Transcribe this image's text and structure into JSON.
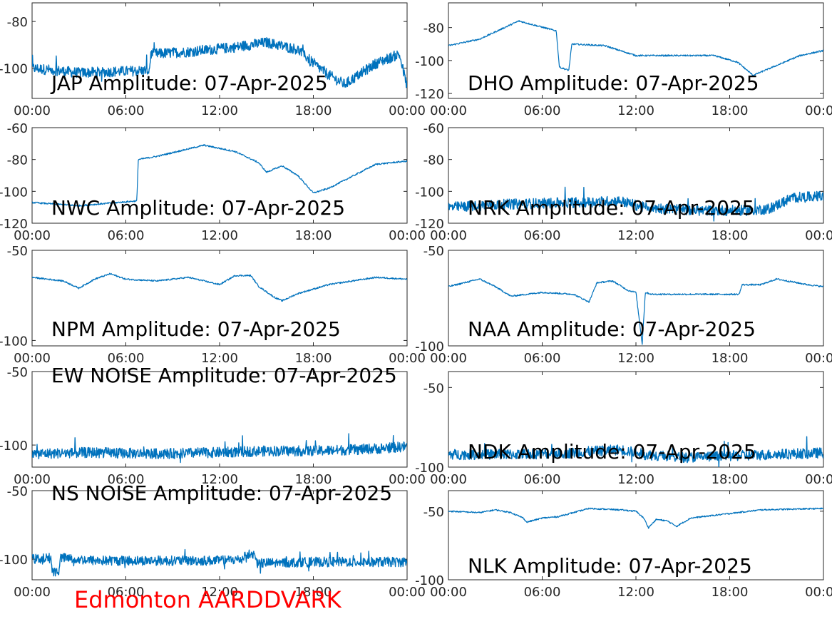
{
  "caption": "Edmonton AARDDVARK",
  "caption_color": "#ff0000",
  "series_color": "#0072bd",
  "chart_data": [
    {
      "type": "line",
      "title": "JAP Amplitude: 07-Apr-2025",
      "x_unit": "hours",
      "xlim": [
        0,
        24
      ],
      "x_ticks": [
        0,
        6,
        12,
        18,
        24
      ],
      "x_tick_labels": [
        "00:00",
        "06:00",
        "12:00",
        "18:00",
        "00:00"
      ],
      "ylim": [
        -113,
        -72
      ],
      "y_ticks": [
        -80,
        -100
      ],
      "y_tick_labels": [
        "-80",
        "-100"
      ],
      "series": [
        {
          "values": [
            [
              0,
              -100
            ],
            [
              3,
              -102
            ],
            [
              7.5,
              -101
            ],
            [
              7.6,
              -94
            ],
            [
              10,
              -93
            ],
            [
              13,
              -91
            ],
            [
              15,
              -89
            ],
            [
              17,
              -92
            ],
            [
              18.2,
              -99
            ],
            [
              19,
              -103
            ],
            [
              20,
              -107
            ],
            [
              22,
              -98
            ],
            [
              23.5,
              -94
            ],
            [
              24,
              -108
            ]
          ]
        }
      ]
    },
    {
      "type": "line",
      "title": "DHO Amplitude: 07-Apr-2025",
      "x_unit": "hours",
      "xlim": [
        0,
        24
      ],
      "x_ticks": [
        0,
        6,
        12,
        18,
        24
      ],
      "x_tick_labels": [
        "00:00",
        "06:00",
        "12:00",
        "18:00",
        "00:00"
      ],
      "ylim": [
        -123,
        -65
      ],
      "y_ticks": [
        -80,
        -100,
        -120
      ],
      "y_tick_labels": [
        "-80",
        "-100",
        "-120"
      ],
      "series": [
        {
          "values": [
            [
              0,
              -91
            ],
            [
              2,
              -87
            ],
            [
              4.5,
              -76
            ],
            [
              6.5,
              -81
            ],
            [
              6.9,
              -82
            ],
            [
              7.1,
              -104
            ],
            [
              7.7,
              -106
            ],
            [
              7.9,
              -90
            ],
            [
              10,
              -91
            ],
            [
              12,
              -97
            ],
            [
              15,
              -97
            ],
            [
              17,
              -97
            ],
            [
              18.5,
              -101
            ],
            [
              19.5,
              -109
            ],
            [
              21,
              -103
            ],
            [
              22.5,
              -97
            ],
            [
              24,
              -94
            ]
          ]
        }
      ]
    },
    {
      "type": "line",
      "title": "NWC Amplitude: 07-Apr-2025",
      "x_unit": "hours",
      "xlim": [
        0,
        24
      ],
      "x_ticks": [
        0,
        6,
        12,
        18,
        24
      ],
      "x_tick_labels": [
        "00:00",
        "06:00",
        "12:00",
        "18:00",
        "00:00"
      ],
      "ylim": [
        -120,
        -60
      ],
      "y_ticks": [
        -60,
        -80,
        -100,
        -120
      ],
      "y_tick_labels": [
        "-60",
        "-80",
        "-100",
        "-120"
      ],
      "series": [
        {
          "values": [
            [
              0,
              -107
            ],
            [
              3,
              -109
            ],
            [
              6.7,
              -106
            ],
            [
              6.8,
              -80
            ],
            [
              8,
              -78
            ],
            [
              11,
              -71
            ],
            [
              13,
              -75
            ],
            [
              14.5,
              -82
            ],
            [
              15,
              -88
            ],
            [
              16,
              -84
            ],
            [
              17,
              -90
            ],
            [
              18,
              -101
            ],
            [
              19,
              -98
            ],
            [
              21,
              -88
            ],
            [
              22,
              -83
            ],
            [
              24,
              -81
            ]
          ]
        }
      ]
    },
    {
      "type": "line",
      "title": "NRK Amplitude: 07-Apr-2025",
      "x_unit": "hours",
      "xlim": [
        0,
        24
      ],
      "x_ticks": [
        0,
        6,
        12,
        18,
        24
      ],
      "x_tick_labels": [
        "00:00",
        "06:00",
        "12:00",
        "18:00",
        "00:00"
      ],
      "ylim": [
        -120,
        -60
      ],
      "y_ticks": [
        -60,
        -80,
        -100,
        -120
      ],
      "y_tick_labels": [
        "-60",
        "-80",
        "-100",
        "-120"
      ],
      "series": [
        {
          "values": [
            [
              0,
              -110
            ],
            [
              4,
              -108
            ],
            [
              8,
              -107
            ],
            [
              11,
              -106
            ],
            [
              12.5,
              -110
            ],
            [
              16,
              -112
            ],
            [
              19,
              -112
            ],
            [
              20.5,
              -111
            ],
            [
              22,
              -104
            ],
            [
              24,
              -103
            ]
          ]
        }
      ]
    },
    {
      "type": "line",
      "title": "NPM Amplitude: 07-Apr-2025",
      "x_unit": "hours",
      "xlim": [
        0,
        24
      ],
      "x_ticks": [
        0,
        6,
        12,
        18,
        24
      ],
      "x_tick_labels": [
        "00:00",
        "06:00",
        "12:00",
        "18:00",
        "00:00"
      ],
      "ylim": [
        -103,
        -50
      ],
      "y_ticks": [
        -50,
        -100
      ],
      "y_tick_labels": [
        "-50",
        "-100"
      ],
      "series": [
        {
          "values": [
            [
              0,
              -65
            ],
            [
              2,
              -67
            ],
            [
              3,
              -71
            ],
            [
              4,
              -66
            ],
            [
              5,
              -63
            ],
            [
              6,
              -66
            ],
            [
              8,
              -67
            ],
            [
              10,
              -65
            ],
            [
              11,
              -67
            ],
            [
              12,
              -69
            ],
            [
              13,
              -64
            ],
            [
              14,
              -64
            ],
            [
              14.5,
              -70
            ],
            [
              15.5,
              -76
            ],
            [
              16,
              -78
            ],
            [
              17,
              -74
            ],
            [
              19,
              -69
            ],
            [
              22,
              -65
            ],
            [
              24,
              -66
            ]
          ]
        }
      ]
    },
    {
      "type": "line",
      "title": "NAA Amplitude: 07-Apr-2025",
      "x_unit": "hours",
      "xlim": [
        0,
        24
      ],
      "x_ticks": [
        0,
        6,
        12,
        18,
        24
      ],
      "x_tick_labels": [
        "00:00",
        "06:00",
        "12:00",
        "18:00",
        "00:00"
      ],
      "ylim": [
        -100,
        -50
      ],
      "y_ticks": [
        -50,
        -100
      ],
      "y_tick_labels": [
        "-50",
        "-100"
      ],
      "series": [
        {
          "values": [
            [
              0,
              -69
            ],
            [
              2,
              -65
            ],
            [
              3,
              -69
            ],
            [
              4,
              -74
            ],
            [
              6,
              -72
            ],
            [
              8,
              -73
            ],
            [
              9,
              -77
            ],
            [
              9.5,
              -67
            ],
            [
              10.5,
              -66
            ],
            [
              11.5,
              -71
            ],
            [
              12,
              -72
            ],
            [
              12.4,
              -99
            ],
            [
              12.6,
              -72
            ],
            [
              13,
              -73
            ],
            [
              18.6,
              -73
            ],
            [
              18.8,
              -68
            ],
            [
              20,
              -68
            ],
            [
              21,
              -65
            ],
            [
              23,
              -68
            ],
            [
              24,
              -69
            ]
          ]
        }
      ]
    },
    {
      "type": "line",
      "title": "EW NOISE Amplitude: 07-Apr-2025",
      "x_unit": "hours",
      "xlim": [
        0,
        24
      ],
      "x_ticks": [
        0,
        6,
        12,
        18,
        24
      ],
      "x_tick_labels": [
        "00:00",
        "06:00",
        "12:00",
        "18:00",
        "00:00"
      ],
      "ylim": [
        -115,
        -50
      ],
      "y_ticks": [
        -50,
        -100
      ],
      "y_tick_labels": [
        "-50",
        "-100"
      ],
      "series": [
        {
          "values": [
            [
              0,
              -106
            ],
            [
              4,
              -105
            ],
            [
              8,
              -106
            ],
            [
              12,
              -105
            ],
            [
              15,
              -104
            ],
            [
              18,
              -104
            ],
            [
              21,
              -103
            ],
            [
              24,
              -101
            ]
          ]
        }
      ]
    },
    {
      "type": "line",
      "title": "NDK Amplitude: 07-Apr-2025",
      "x_unit": "hours",
      "xlim": [
        0,
        24
      ],
      "x_ticks": [
        0,
        6,
        12,
        18,
        24
      ],
      "x_tick_labels": [
        "00:00",
        "06:00",
        "12:00",
        "18:00",
        "00:00"
      ],
      "ylim": [
        -100,
        -40
      ],
      "y_ticks": [
        -50,
        -100
      ],
      "y_tick_labels": [
        "-50",
        "-100"
      ],
      "series": [
        {
          "values": [
            [
              0,
              -92
            ],
            [
              4,
              -92
            ],
            [
              8,
              -91
            ],
            [
              11,
              -89
            ],
            [
              12.5,
              -92
            ],
            [
              15,
              -94
            ],
            [
              18,
              -93
            ],
            [
              21,
              -92
            ],
            [
              24,
              -91
            ]
          ]
        }
      ]
    },
    {
      "type": "line",
      "title": "NS NOISE Amplitude: 07-Apr-2025",
      "x_unit": "hours",
      "xlim": [
        0,
        24
      ],
      "x_ticks": [
        0,
        6,
        12,
        18,
        24
      ],
      "x_tick_labels": [
        "00:00",
        "06:00",
        "12:00",
        "18:00",
        "00:00"
      ],
      "ylim": [
        -115,
        -50
      ],
      "y_ticks": [
        -50,
        -100
      ],
      "y_tick_labels": [
        "-50",
        "-100"
      ],
      "series": [
        {
          "values": [
            [
              0,
              -100
            ],
            [
              1.2,
              -99
            ],
            [
              1.3,
              -109
            ],
            [
              1.7,
              -109
            ],
            [
              1.8,
              -99
            ],
            [
              4,
              -101
            ],
            [
              8,
              -101
            ],
            [
              12,
              -101
            ],
            [
              13.5,
              -100
            ],
            [
              13.6,
              -96
            ],
            [
              14.3,
              -97
            ],
            [
              14.4,
              -103
            ],
            [
              18,
              -102
            ],
            [
              21,
              -102
            ],
            [
              24,
              -102
            ]
          ]
        }
      ]
    },
    {
      "type": "line",
      "title": "NLK Amplitude: 07-Apr-2025",
      "x_unit": "hours",
      "xlim": [
        0,
        24
      ],
      "x_ticks": [
        0,
        6,
        12,
        18,
        24
      ],
      "x_tick_labels": [
        "00:00",
        "06:00",
        "12:00",
        "18:00",
        "00:00"
      ],
      "ylim": [
        -100,
        -35
      ],
      "y_ticks": [
        -50,
        -100
      ],
      "y_tick_labels": [
        "-50",
        "-100"
      ],
      "series": [
        {
          "values": [
            [
              0,
              -50
            ],
            [
              2,
              -51
            ],
            [
              3,
              -49
            ],
            [
              4,
              -51
            ],
            [
              4.8,
              -55
            ],
            [
              5,
              -58
            ],
            [
              6,
              -55
            ],
            [
              7,
              -54
            ],
            [
              8,
              -51
            ],
            [
              9,
              -48
            ],
            [
              11,
              -49
            ],
            [
              12,
              -50
            ],
            [
              12.5,
              -55
            ],
            [
              12.8,
              -62
            ],
            [
              13.3,
              -56
            ],
            [
              14,
              -57
            ],
            [
              14.6,
              -61
            ],
            [
              15.5,
              -55
            ],
            [
              17,
              -53
            ],
            [
              20,
              -49
            ],
            [
              24,
              -48
            ]
          ]
        }
      ]
    }
  ]
}
